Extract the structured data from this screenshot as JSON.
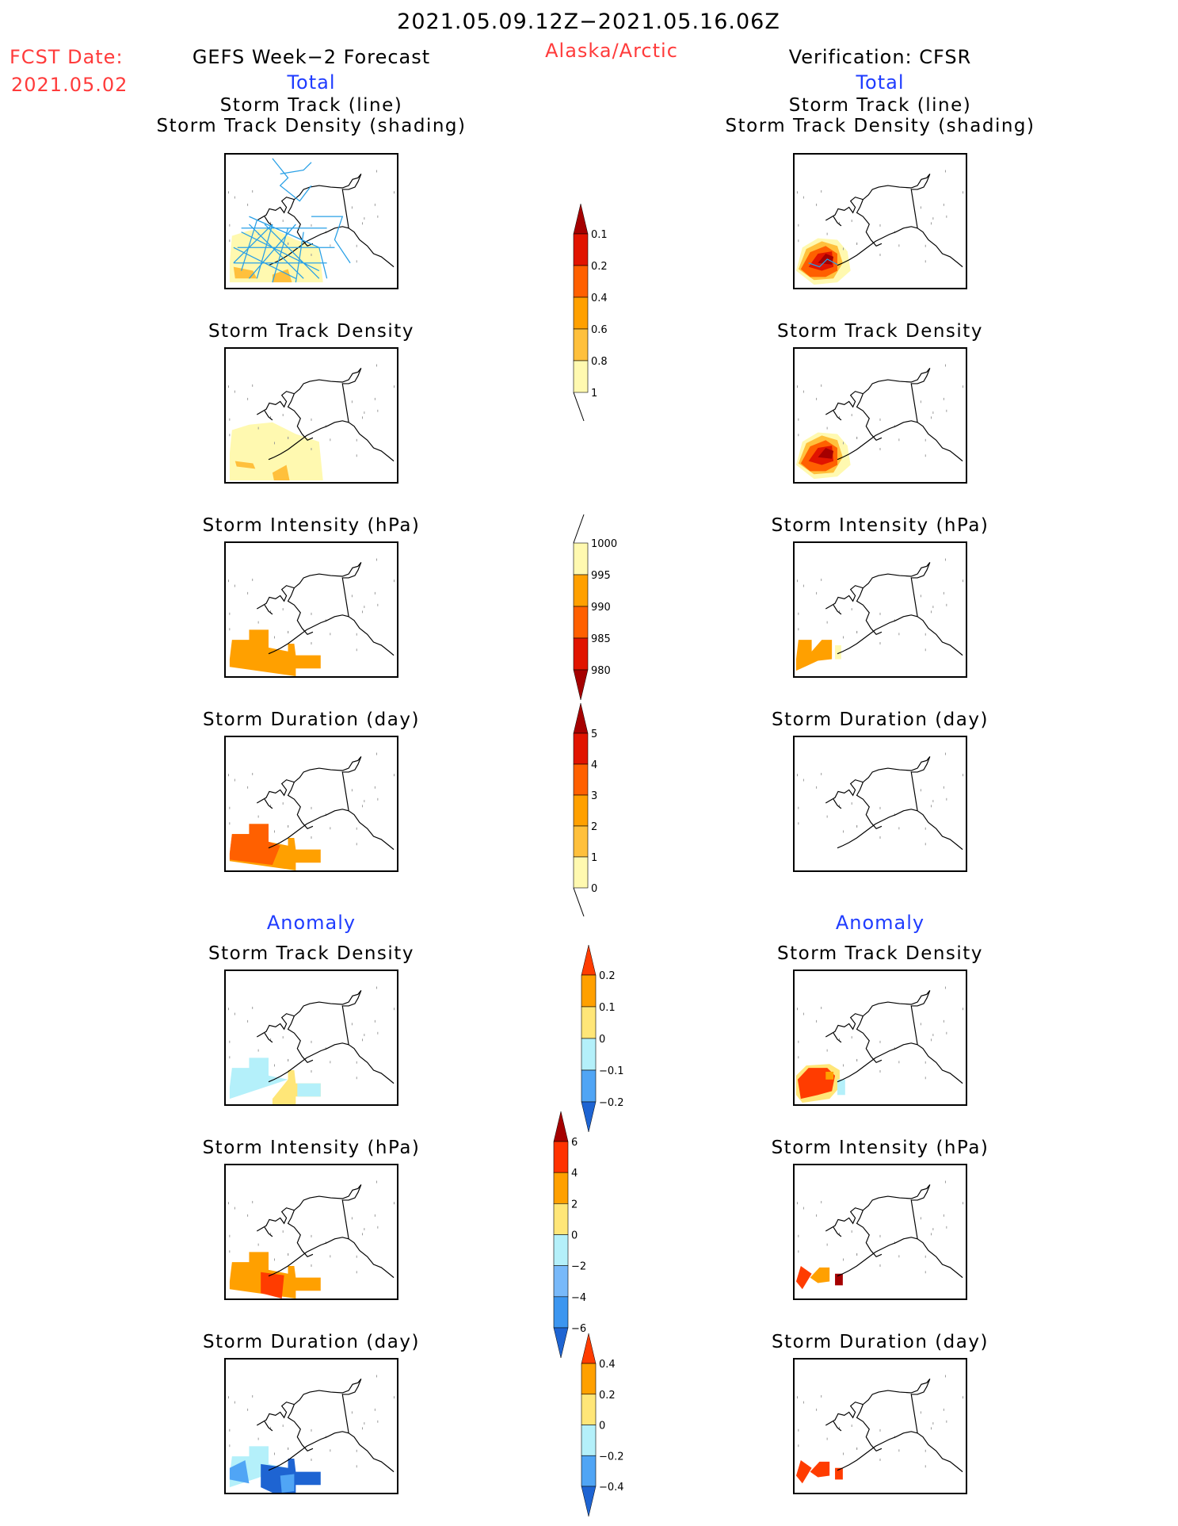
{
  "header": {
    "period": "2021.05.09.12Z−2021.05.16.06Z",
    "region": "Alaska/Arctic",
    "fcst_label": "FCST Date:",
    "fcst_date": "2021.05.02",
    "left_title": "GEFS Week−2 Forecast",
    "right_title": "Verification: CFSR",
    "left_subtitle": "Total",
    "right_subtitle": "Total",
    "left_anomaly": "Anomaly",
    "right_anomaly": "Anomaly"
  },
  "panels": {
    "left": [
      {
        "title1": "Storm Track (line)",
        "title2": "Storm Track Density (shading)"
      },
      {
        "title1": "Storm Track Density"
      },
      {
        "title1": "Storm Intensity (hPa)"
      },
      {
        "title1": "Storm Duration (day)"
      },
      {
        "title1": "Storm Track Density"
      },
      {
        "title1": "Storm Intensity (hPa)"
      },
      {
        "title1": "Storm Duration (day)"
      }
    ],
    "right": [
      {
        "title1": "Storm Track (line)",
        "title2": "Storm Track Density (shading)"
      },
      {
        "title1": "Storm Track Density"
      },
      {
        "title1": "Storm Intensity (hPa)"
      },
      {
        "title1": "Storm Duration (day)"
      },
      {
        "title1": "Storm Track Density"
      },
      {
        "title1": "Storm Intensity (hPa)"
      },
      {
        "title1": "Storm Duration (day)"
      }
    ]
  },
  "chart_data": [
    {
      "type": "heatmap",
      "title": "Storm Track Density colorbar (Total)",
      "levels": [
        "0.1",
        "0.2",
        "0.4",
        "0.6",
        "0.8",
        "1"
      ],
      "colors": [
        "#fff9b0",
        "#ffc03c",
        "#ffa000",
        "#ff6000",
        "#e11400",
        "#a50000"
      ],
      "extend": "max"
    },
    {
      "type": "heatmap",
      "title": "Storm Intensity colorbar (hPa, Total)",
      "levels": [
        "1000",
        "995",
        "990",
        "985",
        "980"
      ],
      "colors": [
        "#fff9b0",
        "#ffa000",
        "#ff6000",
        "#e11400",
        "#a50000"
      ],
      "extend": "min"
    },
    {
      "type": "heatmap",
      "title": "Storm Duration colorbar (day, Total)",
      "levels": [
        "5",
        "4",
        "3",
        "2",
        "1",
        "0"
      ],
      "colors": [
        "#a50000",
        "#e11400",
        "#ff6000",
        "#ffa000",
        "#ffc03c",
        "#fff9b0"
      ],
      "extend": "max"
    },
    {
      "type": "heatmap",
      "title": "Storm Track Density anomaly colorbar",
      "levels": [
        "0.2",
        "0.1",
        "0",
        "−0.1",
        "−0.2"
      ],
      "colors": [
        "#ff3c00",
        "#ffa000",
        "#ffe678",
        "#b4f0fa",
        "#50a5f5",
        "#1e64d2"
      ],
      "extend": "both"
    },
    {
      "type": "heatmap",
      "title": "Storm Intensity anomaly colorbar (hPa)",
      "levels": [
        "6",
        "4",
        "2",
        "0",
        "−2",
        "−4",
        "−6"
      ],
      "colors": [
        "#a50000",
        "#ff3200",
        "#ffa000",
        "#ffe678",
        "#b4f0fa",
        "#78b9fa",
        "#3c96f0",
        "#1e64d2"
      ],
      "extend": "both"
    },
    {
      "type": "heatmap",
      "title": "Storm Duration anomaly colorbar (day)",
      "levels": [
        "0.4",
        "0.2",
        "0",
        "−0.2",
        "−0.4"
      ],
      "colors": [
        "#ff3c00",
        "#ffa000",
        "#ffe678",
        "#b4f0fa",
        "#50a5f5",
        "#1e64d2"
      ],
      "extend": "both"
    }
  ]
}
